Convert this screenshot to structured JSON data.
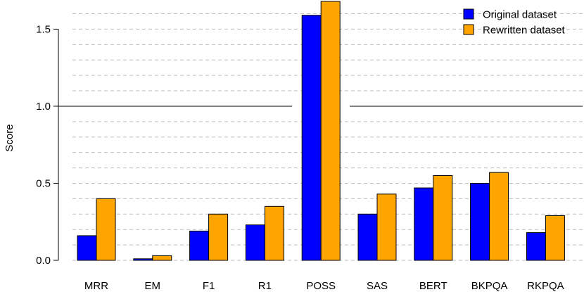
{
  "chart_data": {
    "type": "bar",
    "categories": [
      "MRR",
      "EM",
      "F1",
      "R1",
      "POSS",
      "SAS",
      "BERT",
      "BKPQA",
      "RKPQA"
    ],
    "series": [
      {
        "name": "Original dataset",
        "color": "#0000ff",
        "values": [
          0.16,
          0.01,
          0.19,
          0.23,
          1.59,
          0.3,
          0.47,
          0.5,
          0.18
        ]
      },
      {
        "name": "Rewritten dataset",
        "color": "#ffa500",
        "values": [
          0.4,
          0.03,
          0.3,
          0.35,
          1.68,
          0.43,
          0.55,
          0.57,
          0.29
        ]
      }
    ],
    "title": "",
    "xlabel": "",
    "ylabel": "Score",
    "ylim": [
      0,
      1.68
    ],
    "yticks": [
      0.0,
      0.5,
      1.0,
      1.5
    ],
    "ytick_labels": [
      "0.0",
      "0.5",
      "1.0",
      "1.5"
    ],
    "minor_grid_step": 0.1,
    "grid": true,
    "legend_position": "top-right"
  }
}
